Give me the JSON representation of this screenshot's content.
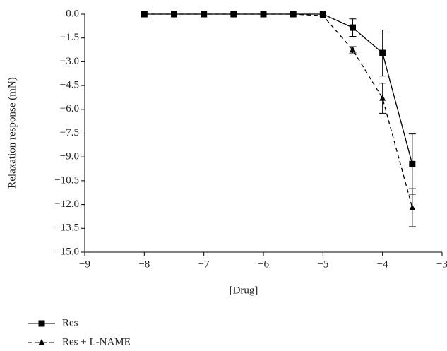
{
  "chart_data": {
    "type": "line",
    "y_label": "Relaxation response (mN)",
    "x_label": "[Drug]",
    "x": [
      -8,
      -7.5,
      -7,
      -6.5,
      -6,
      -5.5,
      -5,
      -4.5,
      -4,
      -3.5
    ],
    "series": [
      {
        "name": "Res",
        "color": "#000000",
        "marker": "square",
        "dash": false,
        "values": [
          0,
          0,
          0,
          0,
          0,
          0,
          0,
          -0.85,
          -2.45,
          -9.45
        ],
        "errors": [
          null,
          null,
          null,
          null,
          null,
          null,
          null,
          0.55,
          1.45,
          1.9
        ]
      },
      {
        "name": "Res + L-NAME",
        "color": "#000000",
        "marker": "triangle",
        "dash": true,
        "values": [
          0,
          0,
          0,
          0,
          0,
          0,
          -0.1,
          -2.25,
          -5.3,
          -12.2
        ],
        "errors": [
          null,
          null,
          null,
          null,
          null,
          null,
          null,
          0.2,
          0.95,
          1.2
        ]
      }
    ],
    "xlim": [
      -9,
      -3
    ],
    "xticks": [
      {
        "value": -9,
        "label": "−9"
      },
      {
        "value": -8,
        "label": "−8"
      },
      {
        "value": -7,
        "label": "−7"
      },
      {
        "value": -6,
        "label": "−6"
      },
      {
        "value": -5,
        "label": "−5"
      },
      {
        "value": -4,
        "label": "−4"
      },
      {
        "value": -3,
        "label": "−3"
      }
    ],
    "ylim": [
      -15,
      0
    ],
    "yticks": [
      {
        "value": 0,
        "label": "0.0"
      },
      {
        "value": -1.5,
        "label": "−1.5"
      },
      {
        "value": -3,
        "label": "−3.0"
      },
      {
        "value": -4.5,
        "label": "−4.5"
      },
      {
        "value": -6,
        "label": "−6.0"
      },
      {
        "value": -7.5,
        "label": "−7.5"
      },
      {
        "value": -9,
        "label": "−9.0"
      },
      {
        "value": -10.5,
        "label": "−10.5"
      },
      {
        "value": -12,
        "label": "−12.0"
      },
      {
        "value": -13.5,
        "label": "−13.5"
      },
      {
        "value": -15,
        "label": "−15.0"
      }
    ],
    "grid": false
  }
}
